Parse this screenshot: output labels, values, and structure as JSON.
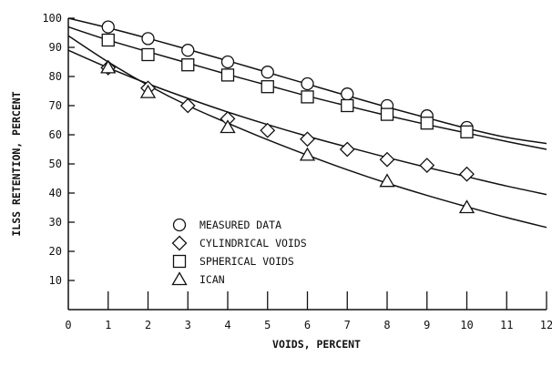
{
  "chart_data": {
    "type": "scatter",
    "xlabel": "VOIDS, PERCENT",
    "ylabel": "ILSS RETENTION, PERCENT",
    "xlim": [
      0,
      12
    ],
    "ylim": [
      0,
      100
    ],
    "x_ticks": [
      0,
      1,
      2,
      3,
      4,
      5,
      6,
      7,
      8,
      9,
      10,
      11,
      12
    ],
    "y_ticks": [
      10,
      20,
      30,
      40,
      50,
      60,
      70,
      80,
      90,
      100
    ],
    "grid": false,
    "legend_position": "lower-left",
    "series": [
      {
        "name": "MEASURED DATA",
        "marker": "circle",
        "x": [
          1,
          2,
          3,
          4,
          5,
          6,
          7,
          8,
          9,
          10
        ],
        "y": [
          97,
          93,
          89,
          85,
          81.5,
          77.5,
          74,
          70,
          66.5,
          62.5
        ],
        "fit": [
          [
            0,
            100
          ],
          [
            1,
            96.7
          ],
          [
            2,
            93.1
          ],
          [
            3,
            89.3
          ],
          [
            4,
            85.4
          ],
          [
            5,
            81.4
          ],
          [
            6,
            77.4
          ],
          [
            7,
            73.4
          ],
          [
            8,
            69.5
          ],
          [
            9,
            65.8
          ],
          [
            10,
            62.2
          ],
          [
            11,
            59.1
          ],
          [
            12,
            57
          ]
        ]
      },
      {
        "name": "CYLINDRICAL VOIDS",
        "marker": "diamond",
        "x": [
          1,
          2,
          3,
          4,
          5,
          6,
          7,
          8,
          9,
          10
        ],
        "y": [
          83,
          76,
          70,
          65.5,
          61.5,
          58.5,
          55,
          51.5,
          49.5,
          46.5
        ],
        "fit": [
          [
            0,
            89
          ],
          [
            1,
            83
          ],
          [
            2,
            77.5
          ],
          [
            3,
            72.5
          ],
          [
            4,
            67.8
          ],
          [
            5,
            63.5
          ],
          [
            6,
            59.5
          ],
          [
            7,
            55.8
          ],
          [
            8,
            52.2
          ],
          [
            9,
            48.8
          ],
          [
            10,
            45.6
          ],
          [
            11,
            42.4
          ],
          [
            12,
            39.5
          ]
        ]
      },
      {
        "name": "SPHERICAL VOIDS",
        "marker": "square",
        "x": [
          1,
          2,
          3,
          4,
          5,
          6,
          7,
          8,
          9,
          10
        ],
        "y": [
          92.5,
          87.5,
          84,
          80.5,
          76.5,
          73,
          70,
          67,
          64,
          61
        ],
        "fit": [
          [
            0,
            97
          ],
          [
            1,
            92.5
          ],
          [
            2,
            88.5
          ],
          [
            3,
            84.6
          ],
          [
            4,
            80.7
          ],
          [
            5,
            77
          ],
          [
            6,
            73.3
          ],
          [
            7,
            69.9
          ],
          [
            8,
            66.6
          ],
          [
            9,
            63.5
          ],
          [
            10,
            60.6
          ],
          [
            11,
            57.7
          ],
          [
            12,
            55
          ]
        ]
      },
      {
        "name": "ICAN",
        "marker": "triangle",
        "x": [
          1,
          2,
          4,
          6,
          8,
          10
        ],
        "y": [
          83,
          74.5,
          62.5,
          53,
          44,
          35
        ],
        "fit": [
          [
            0,
            94
          ],
          [
            1,
            85
          ],
          [
            2,
            77
          ],
          [
            3,
            70
          ],
          [
            4,
            64
          ],
          [
            5,
            58.3
          ],
          [
            6,
            53
          ],
          [
            7,
            48
          ],
          [
            8,
            43.4
          ],
          [
            9,
            39.2
          ],
          [
            10,
            35.3
          ],
          [
            11,
            31.6
          ],
          [
            12,
            28.2
          ]
        ]
      }
    ]
  }
}
